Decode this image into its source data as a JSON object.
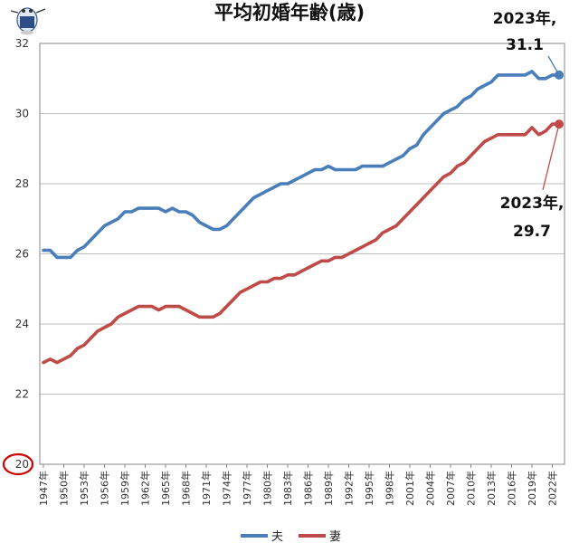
{
  "chart_data": {
    "type": "line",
    "title": "平均初婚年齢(歳)",
    "xlabel": "",
    "ylabel": "",
    "ylim": [
      20,
      32
    ],
    "yticks": [
      20,
      22,
      24,
      26,
      28,
      30,
      32
    ],
    "grid": true,
    "legend": "bottom",
    "x": [
      1947,
      1948,
      1949,
      1950,
      1951,
      1952,
      1953,
      1954,
      1955,
      1956,
      1957,
      1958,
      1959,
      1960,
      1961,
      1962,
      1963,
      1964,
      1965,
      1966,
      1967,
      1968,
      1969,
      1970,
      1971,
      1972,
      1973,
      1974,
      1975,
      1976,
      1977,
      1978,
      1979,
      1980,
      1981,
      1982,
      1983,
      1984,
      1985,
      1986,
      1987,
      1988,
      1989,
      1990,
      1991,
      1992,
      1993,
      1994,
      1995,
      1996,
      1997,
      1998,
      1999,
      2000,
      2001,
      2002,
      2003,
      2004,
      2005,
      2006,
      2007,
      2008,
      2009,
      2010,
      2011,
      2012,
      2013,
      2014,
      2015,
      2016,
      2017,
      2018,
      2019,
      2020,
      2021,
      2022,
      2023
    ],
    "x_tick_labels": [
      "1947年",
      "1950年",
      "1953年",
      "1956年",
      "1959年",
      "1962年",
      "1965年",
      "1968年",
      "1971年",
      "1974年",
      "1977年",
      "1980年",
      "1983年",
      "1986年",
      "1989年",
      "1992年",
      "1995年",
      "1998年",
      "2001年",
      "2004年",
      "2007年",
      "2010年",
      "2013年",
      "2016年",
      "2019年",
      "2022年"
    ],
    "series": [
      {
        "name": "夫",
        "color": "#4a7ebb",
        "values": [
          26.1,
          26.1,
          25.9,
          25.9,
          25.9,
          26.1,
          26.2,
          26.4,
          26.6,
          26.8,
          26.9,
          27.0,
          27.2,
          27.2,
          27.3,
          27.3,
          27.3,
          27.3,
          27.2,
          27.3,
          27.2,
          27.2,
          27.1,
          26.9,
          26.8,
          26.7,
          26.7,
          26.8,
          27.0,
          27.2,
          27.4,
          27.6,
          27.7,
          27.8,
          27.9,
          28.0,
          28.0,
          28.1,
          28.2,
          28.3,
          28.4,
          28.4,
          28.5,
          28.4,
          28.4,
          28.4,
          28.4,
          28.5,
          28.5,
          28.5,
          28.5,
          28.6,
          28.7,
          28.8,
          29.0,
          29.1,
          29.4,
          29.6,
          29.8,
          30.0,
          30.1,
          30.2,
          30.4,
          30.5,
          30.7,
          30.8,
          30.9,
          31.1,
          31.1,
          31.1,
          31.1,
          31.1,
          31.2,
          31.0,
          31.0,
          31.1,
          31.1
        ]
      },
      {
        "name": "妻",
        "color": "#be4b48",
        "values": [
          22.9,
          23.0,
          22.9,
          23.0,
          23.1,
          23.3,
          23.4,
          23.6,
          23.8,
          23.9,
          24.0,
          24.2,
          24.3,
          24.4,
          24.5,
          24.5,
          24.5,
          24.4,
          24.5,
          24.5,
          24.5,
          24.4,
          24.3,
          24.2,
          24.2,
          24.2,
          24.3,
          24.5,
          24.7,
          24.9,
          25.0,
          25.1,
          25.2,
          25.2,
          25.3,
          25.3,
          25.4,
          25.4,
          25.5,
          25.6,
          25.7,
          25.8,
          25.8,
          25.9,
          25.9,
          26.0,
          26.1,
          26.2,
          26.3,
          26.4,
          26.6,
          26.7,
          26.8,
          27.0,
          27.2,
          27.4,
          27.6,
          27.8,
          28.0,
          28.2,
          28.3,
          28.5,
          28.6,
          28.8,
          29.0,
          29.2,
          29.3,
          29.4,
          29.4,
          29.4,
          29.4,
          29.4,
          29.6,
          29.4,
          29.5,
          29.7,
          29.7
        ]
      }
    ],
    "annotations": [
      {
        "series": "夫",
        "x": 2023,
        "y": 31.1,
        "label_line1": "2023年,",
        "label_line2": "31.1"
      },
      {
        "series": "妻",
        "x": 2023,
        "y": 29.7,
        "label_line1": "2023年,",
        "label_line2": "29.7"
      }
    ]
  }
}
